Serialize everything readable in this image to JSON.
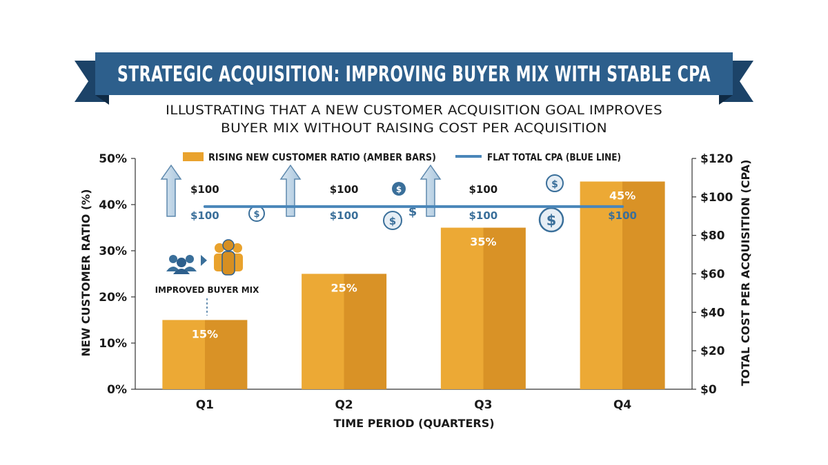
{
  "title": "STRATEGIC ACQUISITION: IMPROVING BUYER MIX WITH STABLE CPA",
  "subtitle_line1": "ILLUSTRATING THAT A NEW CUSTOMER ACQUISITION GOAL IMPROVES",
  "subtitle_line2": "BUYER MIX WITHOUT RAISING COST PER ACQUISITION",
  "colors": {
    "banner": "#2d5f8c",
    "banner_dark": "#1c4368",
    "bar": "#e9a22d",
    "bar_shade": "#d68f22",
    "line": "#4a86b9",
    "icon_blue": "#3a6f9a"
  },
  "annotation": {
    "label": "IMPROVED BUYER MIX",
    "icon": "people-group-icon"
  },
  "chart_data": {
    "type": "bar",
    "categories": [
      "Q1",
      "Q2",
      "Q3",
      "Q4"
    ],
    "xlabel": "TIME PERIOD (QUARTERS)",
    "ylabel": "NEW CUSTOMER RATIO (%)",
    "y2label": "TOTAL COST PER ACQUISITION (CPA)",
    "ylim": [
      0,
      50
    ],
    "y2lim": [
      0,
      120
    ],
    "yticks": [
      "0%",
      "10%",
      "20%",
      "30%",
      "40%",
      "50%"
    ],
    "y2ticks": [
      "$0",
      "$20",
      "$40",
      "$60",
      "$80",
      "$100",
      "$120"
    ],
    "legend": [
      "RISING NEW CUSTOMER RATIO (AMBER BARS)",
      "FLAT TOTAL CPA (BLUE LINE)"
    ],
    "series": [
      {
        "name": "RISING NEW CUSTOMER RATIO (AMBER BARS)",
        "axis": "left",
        "kind": "bar",
        "values": [
          15,
          25,
          35,
          45
        ],
        "labels": [
          "15%",
          "25%",
          "35%",
          "45%"
        ]
      },
      {
        "name": "FLAT TOTAL CPA (BLUE LINE)",
        "axis": "right",
        "kind": "line",
        "values": [
          100,
          100,
          100,
          100
        ]
      }
    ],
    "cpa_upper_labels": [
      "$100",
      "$100",
      "$100"
    ],
    "cpa_lower_labels": [
      "$100",
      "$100",
      "$100",
      "$100"
    ]
  }
}
